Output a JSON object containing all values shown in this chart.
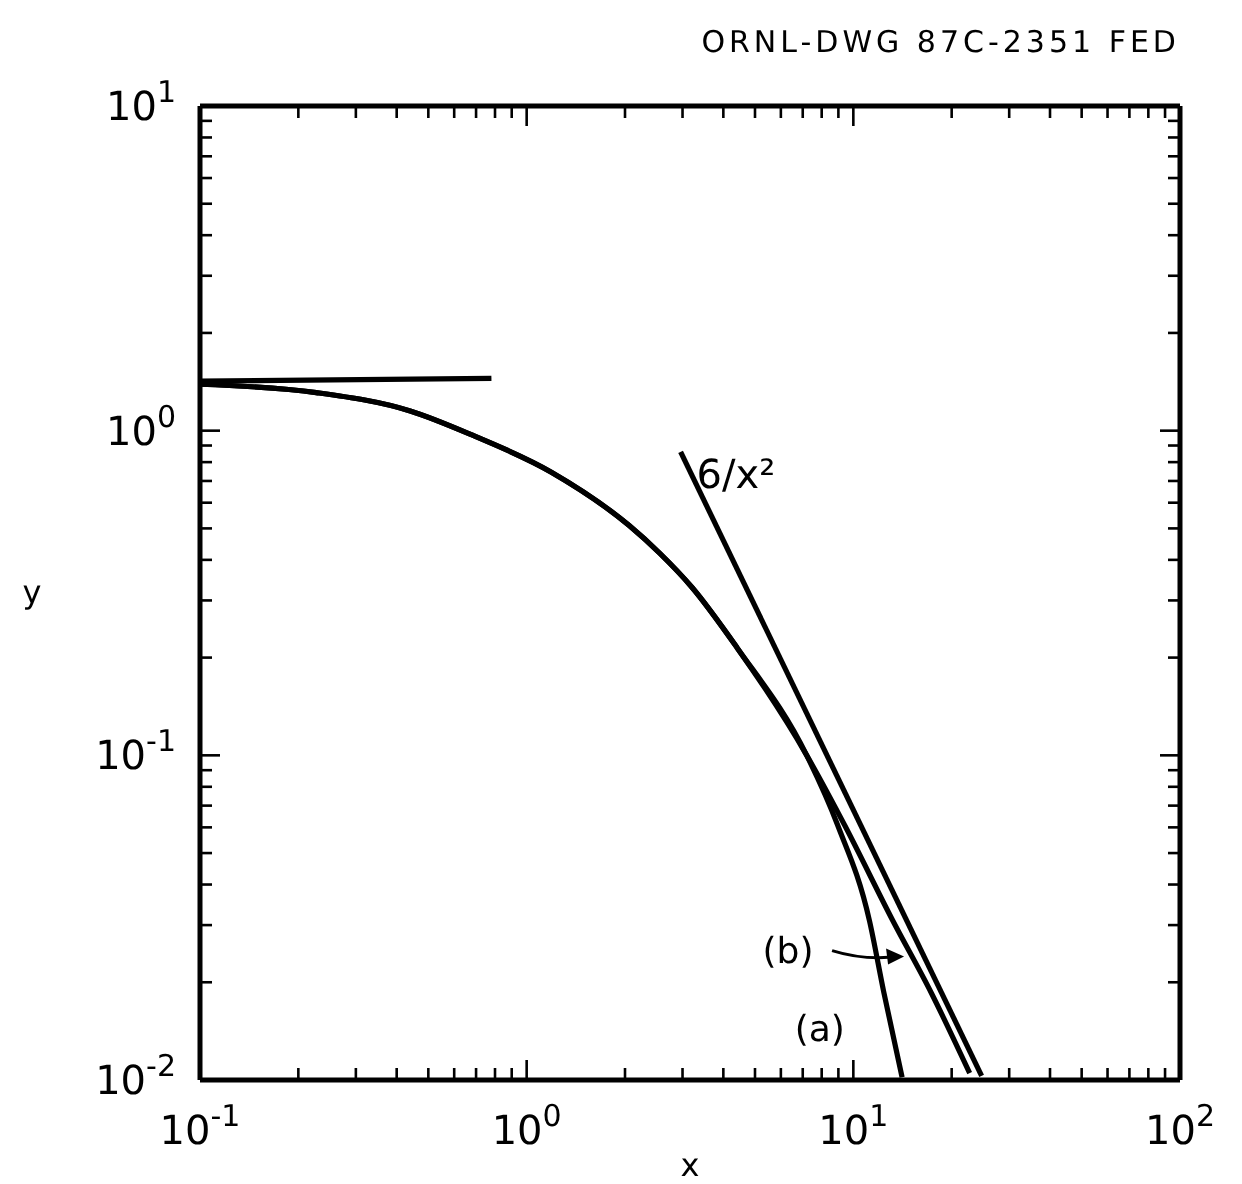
{
  "chart_data": {
    "type": "line",
    "title": "ORNL-DWG 87C-2351 FED",
    "xlabel": "x",
    "ylabel": "y",
    "log": "xy",
    "xlim": [
      0.1,
      100
    ],
    "ylim": [
      0.01,
      10
    ],
    "xticks": [
      {
        "value": 0.1,
        "label": "10$^{-1}$"
      },
      {
        "value": 0.2,
        "label": null
      },
      {
        "value": 0.3,
        "label": null
      },
      {
        "value": 0.4,
        "label": null
      },
      {
        "value": 0.5,
        "label": null
      },
      {
        "value": 0.6,
        "label": null
      },
      {
        "value": 0.7,
        "label": null
      },
      {
        "value": 0.8,
        "label": null
      },
      {
        "value": 0.9,
        "label": null
      },
      {
        "value": 1,
        "label": "10$^{0}$"
      },
      {
        "value": 2,
        "label": null
      },
      {
        "value": 3,
        "label": null
      },
      {
        "value": 4,
        "label": null
      },
      {
        "value": 5,
        "label": null
      },
      {
        "value": 6,
        "label": null
      },
      {
        "value": 7,
        "label": null
      },
      {
        "value": 8,
        "label": null
      },
      {
        "value": 9,
        "label": null
      },
      {
        "value": 10,
        "label": "10$^{1}$"
      },
      {
        "value": 20,
        "label": null
      },
      {
        "value": 30,
        "label": null
      },
      {
        "value": 40,
        "label": null
      },
      {
        "value": 50,
        "label": null
      },
      {
        "value": 60,
        "label": null
      },
      {
        "value": 70,
        "label": null
      },
      {
        "value": 80,
        "label": null
      },
      {
        "value": 90,
        "label": null
      },
      {
        "value": 100,
        "label": "10$^{2}$"
      }
    ],
    "yticks": [
      {
        "value": 0.01,
        "label": "10$^{-2}$"
      },
      {
        "value": 0.02,
        "label": null
      },
      {
        "value": 0.03,
        "label": null
      },
      {
        "value": 0.04,
        "label": null
      },
      {
        "value": 0.05,
        "label": null
      },
      {
        "value": 0.06,
        "label": null
      },
      {
        "value": 0.07,
        "label": null
      },
      {
        "value": 0.08,
        "label": null
      },
      {
        "value": 0.09,
        "label": null
      },
      {
        "value": 0.1,
        "label": "10$^{-1}$"
      },
      {
        "value": 0.2,
        "label": null
      },
      {
        "value": 0.3,
        "label": null
      },
      {
        "value": 0.4,
        "label": null
      },
      {
        "value": 0.5,
        "label": null
      },
      {
        "value": 0.6,
        "label": null
      },
      {
        "value": 0.7,
        "label": null
      },
      {
        "value": 0.8,
        "label": null
      },
      {
        "value": 0.9,
        "label": null
      },
      {
        "value": 1,
        "label": "10$^{0}$"
      },
      {
        "value": 2,
        "label": null
      },
      {
        "value": 3,
        "label": null
      },
      {
        "value": 4,
        "label": null
      },
      {
        "value": 5,
        "label": null
      },
      {
        "value": 6,
        "label": null
      },
      {
        "value": 7,
        "label": null
      },
      {
        "value": 8,
        "label": null
      },
      {
        "value": 9,
        "label": null
      },
      {
        "value": 10,
        "label": "10$^{1}$"
      }
    ],
    "grid": false,
    "marker": "none",
    "line_style": "solid",
    "series": [
      {
        "color": "#000000",
        "x": [
          0.1,
          0.78
        ],
        "values": [
          1.42,
          1.45
        ]
      },
      {
        "color": "#000000",
        "x": [
          0.1,
          0.227,
          0.44,
          0.68,
          1.19,
          2.06,
          2.55,
          3.2,
          4.4,
          7.2,
          8.95,
          11.2,
          12.4,
          14.1
        ],
        "values": [
          1.39,
          1.31,
          1.15,
          0.97,
          0.745,
          0.51,
          0.42,
          0.33,
          0.215,
          0.1,
          0.061,
          0.031,
          0.0186,
          0.0102
        ]
      },
      {
        "color": "#000000",
        "x": [
          0.1,
          0.227,
          0.44,
          0.68,
          1.19,
          2.06,
          2.55,
          3.2,
          4.4,
          7.2,
          9.4,
          13.2,
          17.3,
          22.7
        ],
        "values": [
          1.39,
          1.31,
          1.15,
          0.97,
          0.745,
          0.51,
          0.42,
          0.33,
          0.215,
          0.1,
          0.061,
          0.031,
          0.0186,
          0.0105
        ]
      },
      {
        "color": "#000000",
        "x": [
          2.96,
          24.7
        ],
        "values": [
          0.86,
          0.0103
        ]
      }
    ],
    "annotations": [
      {
        "text": "6/x²",
        "x": 2.96,
        "y": 0.86
      },
      {
        "text": "(b)",
        "x": 14.3,
        "y": 0.024
      },
      {
        "text": "(a)",
        "x": 12.4,
        "y": 0.0165
      }
    ]
  }
}
